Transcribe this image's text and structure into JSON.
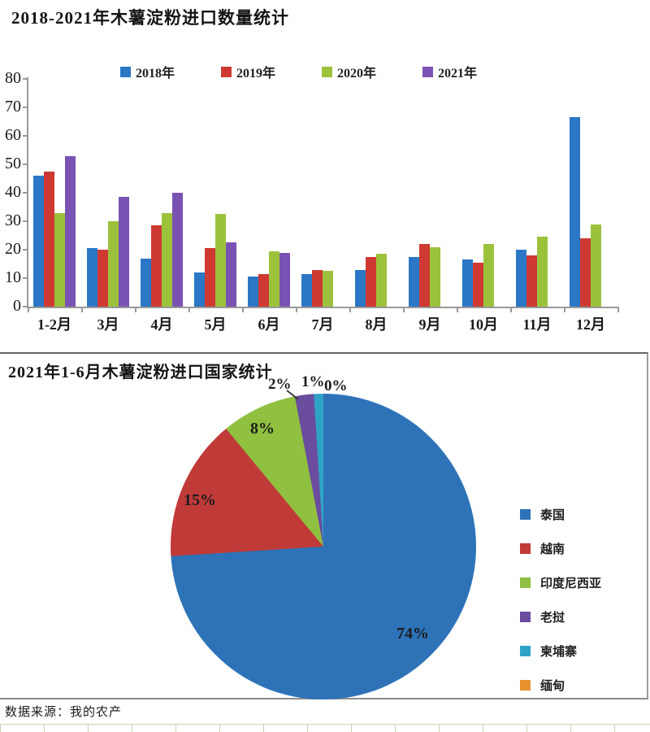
{
  "chart_data": [
    {
      "type": "bar",
      "title": "2018-2021年木薯淀粉进口数量统计",
      "categories": [
        "1-2月",
        "3月",
        "4月",
        "5月",
        "6月",
        "7月",
        "8月",
        "9月",
        "10月",
        "11月",
        "12月"
      ],
      "series": [
        {
          "name": "2018年",
          "color": "#2B77C6",
          "values": [
            46,
            20.5,
            17,
            12,
            10.5,
            11.5,
            13,
            17.5,
            16.5,
            20,
            66.5
          ]
        },
        {
          "name": "2019年",
          "color": "#CE3932",
          "values": [
            47.5,
            20,
            28.5,
            20.5,
            11.5,
            13,
            17.5,
            22,
            15.5,
            18,
            24
          ]
        },
        {
          "name": "2020年",
          "color": "#9CC23C",
          "values": [
            33,
            30,
            33,
            32.5,
            19.5,
            12.5,
            18.5,
            21,
            22,
            24.5,
            29
          ]
        },
        {
          "name": "2021年",
          "color": "#7A52B3",
          "values": [
            53,
            38.5,
            40,
            22.5,
            19,
            null,
            null,
            null,
            null,
            null,
            null
          ]
        }
      ],
      "xlabel": "",
      "ylabel": "",
      "ylim": [
        0,
        80
      ],
      "yticks": [
        0,
        10,
        20,
        30,
        40,
        50,
        60,
        70,
        80
      ],
      "grid": false,
      "legend_position": "top"
    },
    {
      "type": "pie",
      "title": "2021年1-6月木薯淀粉进口国家统计",
      "slices": [
        {
          "label": "泰国",
          "pct": 74,
          "pct_label": "74%",
          "color": "#2E73B8"
        },
        {
          "label": "越南",
          "pct": 15,
          "pct_label": "15%",
          "color": "#C03A38"
        },
        {
          "label": "印度尼西亚",
          "pct": 8,
          "pct_label": "8%",
          "color": "#8FC040"
        },
        {
          "label": "老挝",
          "pct": 2,
          "pct_label": "2%",
          "color": "#6A4D9E"
        },
        {
          "label": "柬埔寨",
          "pct": 1,
          "pct_label": "1%",
          "color": "#2FA3C7"
        },
        {
          "label": "缅甸",
          "pct": 0,
          "pct_label": "0%",
          "color": "#E8912D"
        }
      ],
      "start_angle_deg": 0,
      "direction": "clockwise",
      "legend_position": "right"
    }
  ],
  "footer": {
    "source_text": "数据来源：我的农产"
  }
}
